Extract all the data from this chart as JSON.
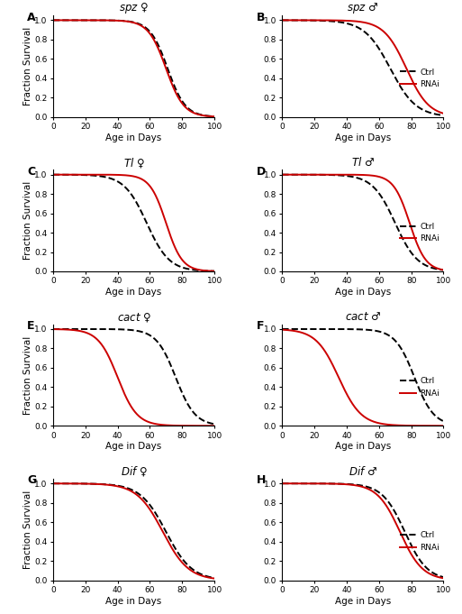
{
  "panels": [
    {
      "label": "A",
      "title": "spz",
      "sex": "♀",
      "ctrl_mu": 71,
      "ctrl_sigma": 5.5,
      "rnai_mu": 70,
      "rnai_sigma": 5.5
    },
    {
      "label": "B",
      "title": "spz",
      "sex": "♂",
      "ctrl_mu": 67,
      "ctrl_sigma": 8,
      "rnai_mu": 77,
      "rnai_sigma": 7
    },
    {
      "label": "C",
      "title": "Tl",
      "sex": "♀",
      "ctrl_mu": 58,
      "ctrl_sigma": 7,
      "rnai_mu": 70,
      "rnai_sigma": 5
    },
    {
      "label": "D",
      "title": "Tl",
      "sex": "♂",
      "ctrl_mu": 70,
      "ctrl_sigma": 7,
      "rnai_mu": 79,
      "rnai_sigma": 5
    },
    {
      "label": "E",
      "title": "cact",
      "sex": "♀",
      "ctrl_mu": 76,
      "ctrl_sigma": 6,
      "rnai_mu": 40,
      "rnai_sigma": 6
    },
    {
      "label": "F",
      "title": "cact",
      "sex": "♂",
      "ctrl_mu": 82,
      "ctrl_sigma": 6,
      "rnai_mu": 35,
      "rnai_sigma": 7
    },
    {
      "label": "G",
      "title": "Dif",
      "sex": "♀",
      "ctrl_mu": 70,
      "ctrl_sigma": 8,
      "rnai_mu": 68,
      "rnai_sigma": 8
    },
    {
      "label": "H",
      "title": "Dif",
      "sex": "♂",
      "ctrl_mu": 76,
      "ctrl_sigma": 7,
      "rnai_mu": 73,
      "rnai_sigma": 7
    }
  ],
  "ctrl_color": "black",
  "rnai_color": "#cc0000",
  "ctrl_style": "--",
  "rnai_style": "-",
  "linewidth": 1.4,
  "xlim": [
    0,
    100
  ],
  "ylim": [
    0,
    1.05
  ],
  "xticks": [
    0,
    20,
    40,
    60,
    80,
    100
  ],
  "yticks": [
    0,
    0.2,
    0.4,
    0.6,
    0.8,
    1.0
  ],
  "xlabel": "Age in Days",
  "ylabel": "Fraction Survival",
  "tick_fontsize": 6.5,
  "label_fontsize": 7.5,
  "title_fontsize": 8.5,
  "panel_label_fontsize": 9
}
